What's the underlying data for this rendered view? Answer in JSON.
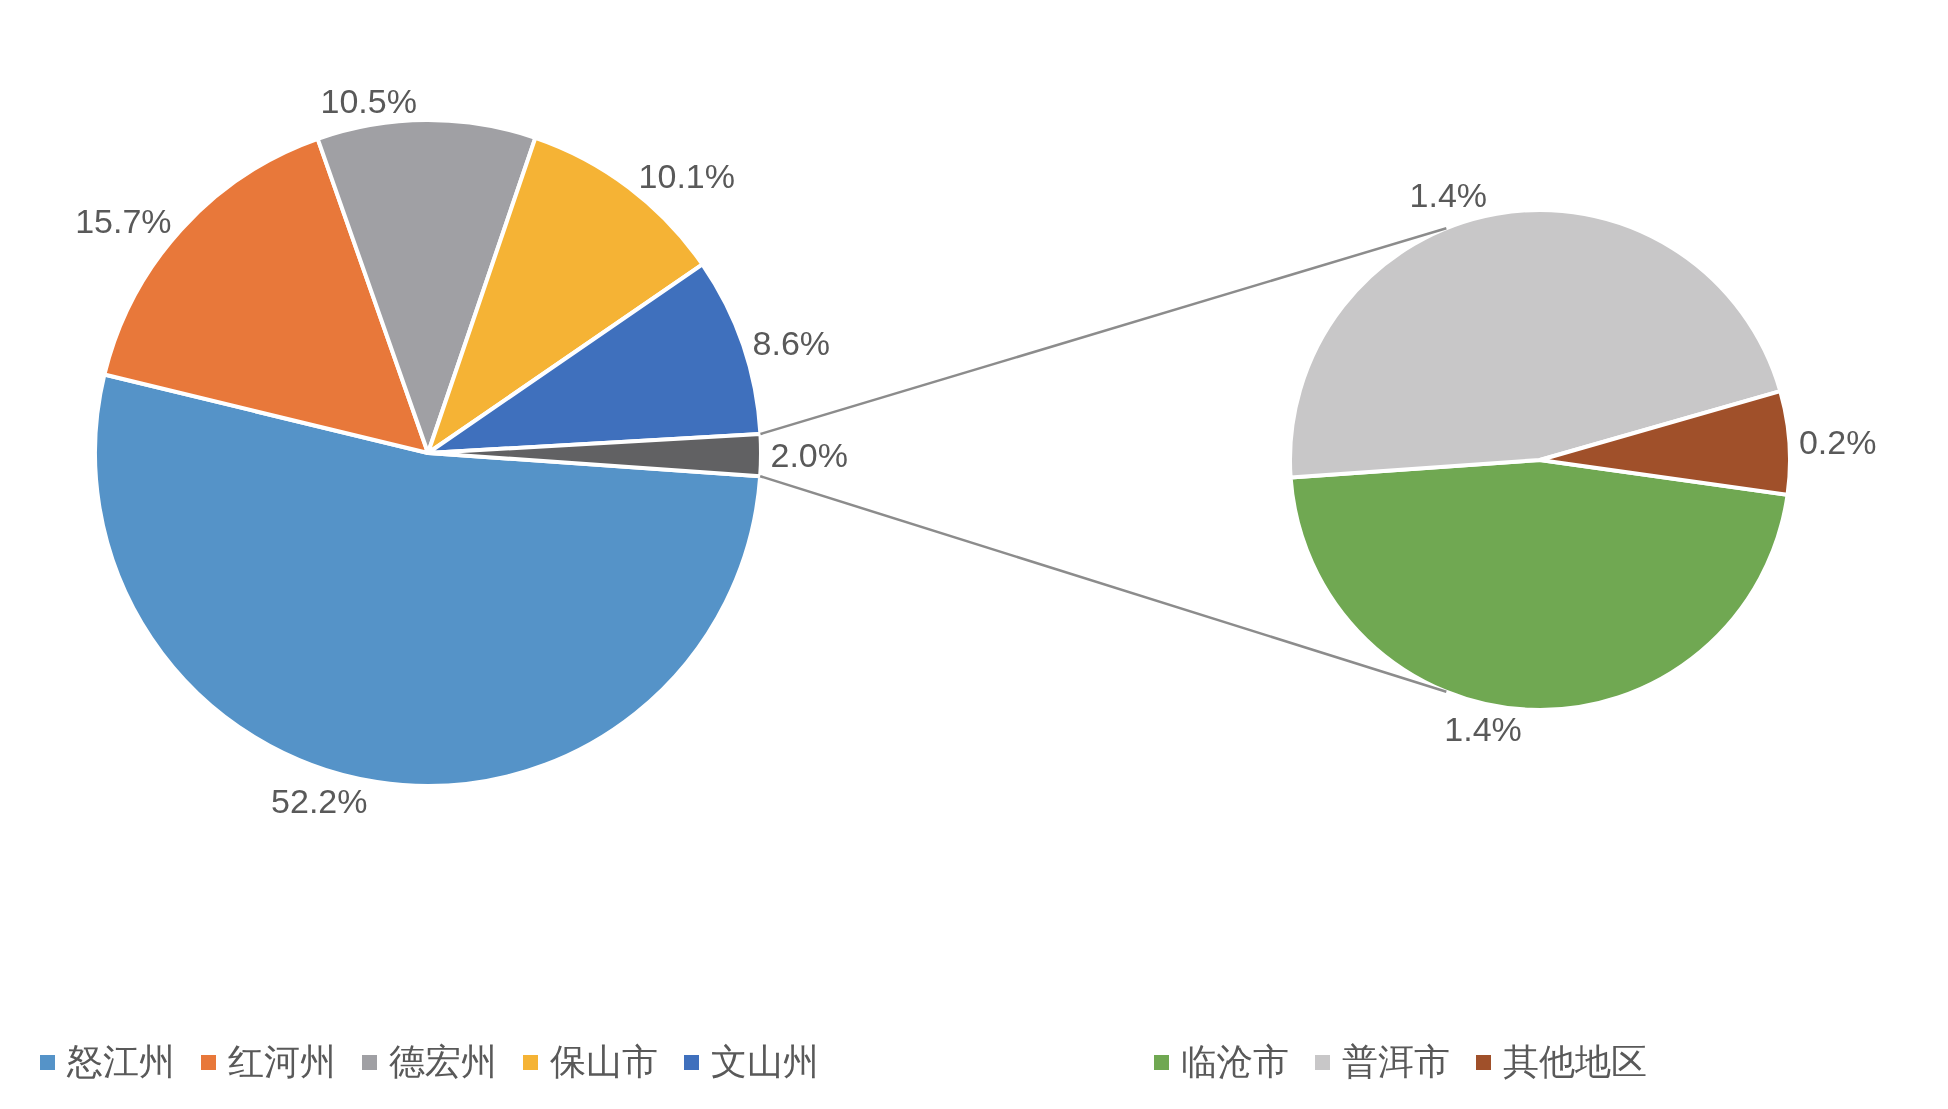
{
  "chart_data": [
    {
      "type": "pie",
      "categories": [
        "怒江州",
        "红河州",
        "德宏州",
        "保山市",
        "文山州",
        null
      ],
      "values": [
        52.2,
        15.7,
        10.5,
        10.1,
        8.6,
        2.0
      ],
      "value_labels": [
        "52.2%",
        "15.7%",
        "10.5%",
        "10.1%",
        "8.6%",
        "2.0%"
      ],
      "colors": [
        "#5593c8",
        "#e8783a",
        "#a0a0a4",
        "#f5b335",
        "#3f70bd",
        "#616163"
      ],
      "legend": "bottom"
    },
    {
      "type": "pie",
      "categories": [
        "临沧市",
        "普洱市",
        "其他地区"
      ],
      "values": [
        1.4,
        1.4,
        0.2
      ],
      "value_labels": [
        "1.4%",
        "1.4%",
        "0.2%"
      ],
      "colors": [
        "#70a852",
        "#c8c7c8",
        "#a0502a"
      ],
      "legend": "bottom"
    }
  ]
}
